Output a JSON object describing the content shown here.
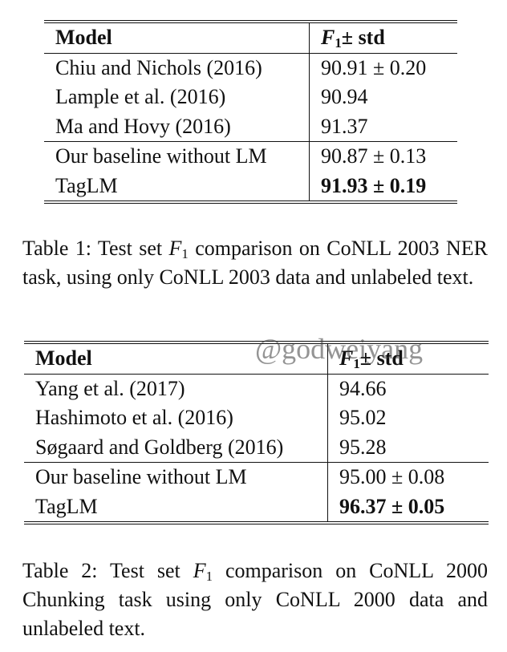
{
  "table1": {
    "header_model": "Model",
    "header_metric_sym": "F",
    "header_metric_sub": "1",
    "header_metric_rest": "± std",
    "rows": [
      {
        "model": "Chiu and Nichols (2016)",
        "score": "90.91 ± 0.20"
      },
      {
        "model": "Lample et al. (2016)",
        "score": "90.94"
      },
      {
        "model": "Ma and Hovy (2016)",
        "score": "91.37"
      },
      {
        "model": "Our baseline without LM",
        "score": "90.87 ± 0.13"
      },
      {
        "model": "TagLM",
        "score": "91.93 ± 0.19"
      }
    ]
  },
  "caption1": {
    "prefix": "Table 1: Test set ",
    "sym": "F",
    "sub": "1",
    "rest": " comparison on CoNLL 2003 NER task, using only CoNLL 2003 data and unlabeled text."
  },
  "table2": {
    "header_model": "Model",
    "header_metric_sym": "F",
    "header_metric_sub": "1",
    "header_metric_rest": "± std",
    "rows": [
      {
        "model": "Yang et al. (2017)",
        "score": "94.66"
      },
      {
        "model": "Hashimoto et al. (2016)",
        "score": "95.02"
      },
      {
        "model": "Søgaard and Goldberg (2016)",
        "score": "95.28"
      },
      {
        "model": "Our baseline without LM",
        "score": "95.00 ± 0.08"
      },
      {
        "model": "TagLM",
        "score": "96.37 ± 0.05"
      }
    ]
  },
  "caption2": {
    "prefix": "Table 2: Test set ",
    "sym": "F",
    "sub": "1",
    "rest": " comparison on CoNLL 2000 Chunking task using only CoNLL 2000 data and unlabeled text."
  },
  "watermark": "@godweiyang"
}
